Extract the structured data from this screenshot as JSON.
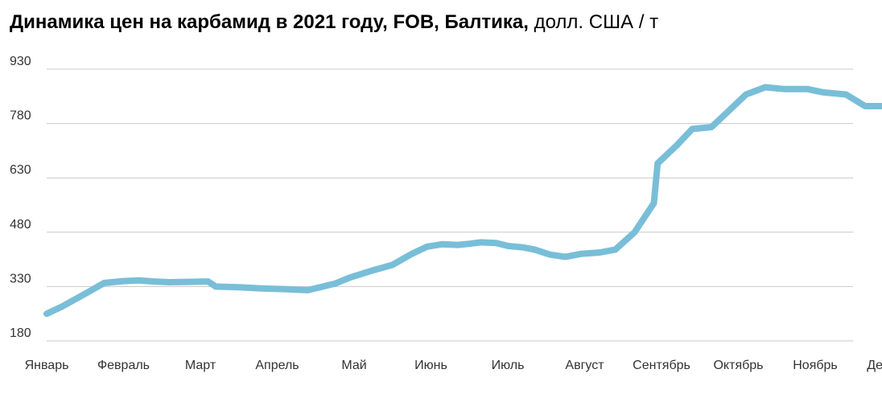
{
  "title": {
    "bold": "Динамика цен на карбамид в 2021 году, FOB, Балтика,",
    "unit": "долл. США / т"
  },
  "chart_data": {
    "type": "line",
    "title": "Динамика цен на карбамид в 2021 году, FOB, Балтика, долл. США / т",
    "ylim": [
      180,
      930
    ],
    "yticks": [
      930,
      780,
      630,
      480,
      330,
      180
    ],
    "xlim": [
      0,
      12
    ],
    "xticks": [
      "Январь",
      "Февраль",
      "Март",
      "Апрель",
      "Май",
      "Июнь",
      "Июль",
      "Август",
      "Сентябрь",
      "Октябрь",
      "Ноябрь",
      "Декабрь"
    ],
    "grid": true,
    "color": "#79bed8",
    "x": [
      0.0,
      0.2,
      0.5,
      0.75,
      1.0,
      1.2,
      1.4,
      1.6,
      1.9,
      2.1,
      2.2,
      2.5,
      2.8,
      3.1,
      3.4,
      3.75,
      3.95,
      4.25,
      4.5,
      4.75,
      4.95,
      5.15,
      5.35,
      5.5,
      5.65,
      5.85,
      6.0,
      6.2,
      6.35,
      6.55,
      6.75,
      6.95,
      7.2,
      7.4,
      7.65,
      7.9,
      7.95,
      8.2,
      8.4,
      8.65,
      8.85,
      9.1,
      9.35,
      9.6,
      9.9,
      10.1,
      10.4,
      10.65,
      10.85,
      11.0,
      11.2
    ],
    "y": [
      255,
      275,
      310,
      340,
      345,
      347,
      344,
      342,
      343,
      344,
      330,
      328,
      325,
      323,
      320,
      338,
      355,
      375,
      390,
      420,
      440,
      447,
      445,
      448,
      452,
      450,
      442,
      438,
      432,
      418,
      412,
      420,
      424,
      432,
      480,
      560,
      670,
      720,
      765,
      770,
      810,
      860,
      880,
      875,
      875,
      866,
      860,
      828,
      828,
      828,
      828
    ]
  }
}
